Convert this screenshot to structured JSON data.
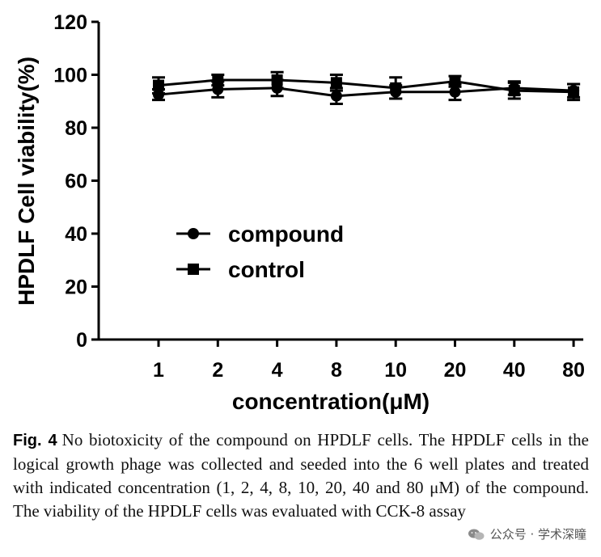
{
  "chart_data": {
    "type": "line",
    "xlabel": "concentration(μM)",
    "ylabel": "HPDLF Cell viability(%)",
    "categories": [
      "1",
      "2",
      "4",
      "8",
      "10",
      "20",
      "40",
      "80"
    ],
    "ylim": [
      0,
      120
    ],
    "yticks": [
      0,
      20,
      40,
      60,
      80,
      100,
      120
    ],
    "grid": false,
    "legend_position": "center-left",
    "series": [
      {
        "name": "compound",
        "marker": "circle",
        "values": [
          92.5,
          94.5,
          95,
          92,
          93.5,
          93.5,
          95,
          94
        ],
        "error": [
          2,
          3,
          3,
          3,
          2.5,
          3,
          2.5,
          2.5
        ]
      },
      {
        "name": "control",
        "marker": "square",
        "values": [
          96,
          98,
          98,
          97,
          95,
          97.5,
          94,
          93.5
        ],
        "error": [
          3,
          2,
          3,
          3,
          4,
          2,
          3,
          3
        ]
      }
    ]
  },
  "caption": {
    "label": "Fig. 4",
    "text": "No biotoxicity of the compound on HPDLF cells. The HPDLF cells in the logical growth phage was collected and seeded into the 6 well plates and treated with indicated concentration (1, 2, 4, 8, 10, 20, 40 and 80 μM) of the compound. The viability of the HPDLF cells was evaluated with CCK-8 assay"
  },
  "watermark": {
    "icon": "wechat-icon",
    "text": "公众号 · 学术深瞳"
  }
}
